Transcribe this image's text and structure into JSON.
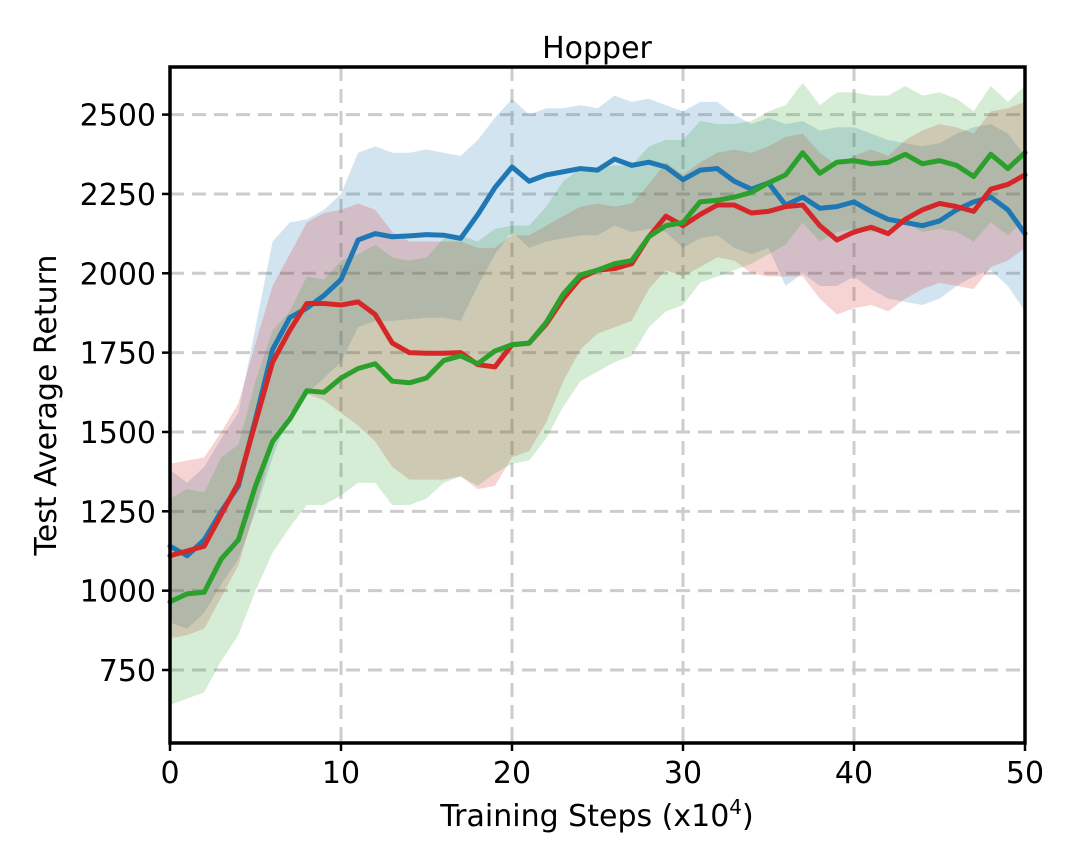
{
  "chart_data": {
    "type": "line",
    "title": "Hopper",
    "xlabel": "Training Steps (x10",
    "xlabel_sup": "4",
    "xlabel_end": ")",
    "ylabel": "Test Average Return",
    "xlim": [
      0,
      50
    ],
    "ylim": [
      520,
      2650
    ],
    "xticks": [
      0,
      10,
      20,
      30,
      40,
      50
    ],
    "yticks": [
      750,
      1000,
      1250,
      1500,
      1750,
      2000,
      2250,
      2500
    ],
    "grid": true,
    "x": [
      0,
      1,
      2,
      3,
      4,
      5,
      6,
      7,
      8,
      9,
      10,
      11,
      12,
      13,
      14,
      15,
      16,
      17,
      18,
      19,
      20,
      21,
      22,
      23,
      24,
      25,
      26,
      27,
      28,
      29,
      30,
      31,
      32,
      33,
      34,
      35,
      36,
      37,
      38,
      39,
      40,
      41,
      42,
      43,
      44,
      45,
      46,
      47,
      48,
      49,
      50
    ],
    "series": [
      {
        "color": "#1f77b4",
        "values": [
          1140,
          1110,
          1160,
          1250,
          1330,
          1540,
          1760,
          1860,
          1890,
          1930,
          1980,
          2105,
          2125,
          2115,
          2118,
          2122,
          2120,
          2110,
          2185,
          2270,
          2335,
          2290,
          2310,
          2320,
          2330,
          2325,
          2360,
          2340,
          2350,
          2335,
          2295,
          2325,
          2330,
          2290,
          2265,
          2285,
          2215,
          2240,
          2205,
          2210,
          2225,
          2195,
          2170,
          2160,
          2150,
          2165,
          2200,
          2225,
          2240,
          2200,
          2125
        ],
        "lower": [
          900,
          880,
          930,
          1020,
          1100,
          1250,
          1420,
          1560,
          1620,
          1670,
          1720,
          1830,
          1850,
          1850,
          1855,
          1860,
          1860,
          1850,
          1960,
          2060,
          2130,
          2080,
          2100,
          2110,
          2120,
          2120,
          2150,
          2130,
          2140,
          2130,
          2080,
          2110,
          2120,
          2080,
          2060,
          2080,
          1960,
          2000,
          1960,
          1960,
          1990,
          1950,
          1920,
          1910,
          1900,
          1920,
          1960,
          1990,
          2010,
          1960,
          1880
        ],
        "upper": [
          1380,
          1340,
          1390,
          1480,
          1560,
          1830,
          2100,
          2160,
          2170,
          2200,
          2250,
          2380,
          2400,
          2380,
          2380,
          2390,
          2380,
          2370,
          2420,
          2490,
          2550,
          2500,
          2520,
          2520,
          2530,
          2520,
          2560,
          2540,
          2550,
          2530,
          2510,
          2540,
          2540,
          2500,
          2470,
          2490,
          2470,
          2480,
          2450,
          2460,
          2460,
          2440,
          2420,
          2410,
          2400,
          2410,
          2440,
          2460,
          2470,
          2440,
          2370
        ]
      },
      {
        "color": "#d62728",
        "values": [
          1110,
          1125,
          1140,
          1240,
          1340,
          1530,
          1720,
          1820,
          1905,
          1905,
          1900,
          1910,
          1870,
          1780,
          1750,
          1748,
          1748,
          1750,
          1712,
          1705,
          1775,
          1780,
          1840,
          1920,
          1985,
          2010,
          2015,
          2030,
          2115,
          2180,
          2150,
          2185,
          2215,
          2215,
          2190,
          2195,
          2210,
          2215,
          2150,
          2105,
          2130,
          2145,
          2125,
          2170,
          2200,
          2220,
          2210,
          2195,
          2265,
          2280,
          2310
        ],
        "lower": [
          850,
          860,
          880,
          980,
          1080,
          1260,
          1460,
          1560,
          1620,
          1600,
          1560,
          1520,
          1470,
          1390,
          1350,
          1350,
          1350,
          1360,
          1320,
          1330,
          1420,
          1440,
          1530,
          1660,
          1760,
          1810,
          1830,
          1850,
          1950,
          2010,
          1990,
          2020,
          2050,
          2040,
          2000,
          1990,
          1990,
          1990,
          1920,
          1870,
          1890,
          1900,
          1880,
          1920,
          1950,
          1970,
          1960,
          1950,
          2020,
          2040,
          2080
        ],
        "upper": [
          1400,
          1410,
          1420,
          1500,
          1590,
          1780,
          1960,
          2060,
          2160,
          2190,
          2200,
          2220,
          2200,
          2130,
          2100,
          2100,
          2100,
          2100,
          2080,
          2080,
          2120,
          2120,
          2150,
          2180,
          2210,
          2220,
          2210,
          2220,
          2280,
          2350,
          2310,
          2350,
          2380,
          2390,
          2380,
          2400,
          2430,
          2440,
          2380,
          2340,
          2370,
          2390,
          2370,
          2420,
          2450,
          2470,
          2460,
          2440,
          2510,
          2520,
          2540
        ]
      },
      {
        "color": "#2ca02c",
        "values": [
          965,
          990,
          995,
          1100,
          1160,
          1330,
          1470,
          1540,
          1630,
          1625,
          1670,
          1700,
          1715,
          1660,
          1655,
          1670,
          1725,
          1740,
          1715,
          1755,
          1775,
          1780,
          1845,
          1935,
          1995,
          2010,
          2030,
          2040,
          2115,
          2150,
          2160,
          2225,
          2230,
          2240,
          2255,
          2285,
          2310,
          2380,
          2315,
          2350,
          2355,
          2345,
          2350,
          2375,
          2345,
          2355,
          2340,
          2305,
          2375,
          2330,
          2380
        ],
        "lower": [
          640,
          660,
          680,
          780,
          860,
          1000,
          1120,
          1200,
          1270,
          1270,
          1300,
          1340,
          1340,
          1270,
          1270,
          1290,
          1340,
          1360,
          1330,
          1370,
          1400,
          1410,
          1480,
          1580,
          1660,
          1690,
          1720,
          1740,
          1830,
          1880,
          1900,
          1970,
          1990,
          2010,
          2030,
          2060,
          2090,
          2160,
          2100,
          2130,
          2140,
          2130,
          2140,
          2160,
          2130,
          2140,
          2130,
          2100,
          2160,
          2120,
          2170
        ],
        "upper": [
          1290,
          1320,
          1310,
          1420,
          1460,
          1660,
          1820,
          1880,
          1990,
          1980,
          2040,
          2060,
          2090,
          2050,
          2040,
          2050,
          2110,
          2120,
          2100,
          2140,
          2150,
          2150,
          2210,
          2290,
          2330,
          2330,
          2340,
          2340,
          2400,
          2420,
          2420,
          2480,
          2470,
          2470,
          2480,
          2510,
          2530,
          2600,
          2530,
          2570,
          2570,
          2560,
          2560,
          2590,
          2560,
          2570,
          2550,
          2510,
          2590,
          2540,
          2590
        ]
      }
    ]
  }
}
